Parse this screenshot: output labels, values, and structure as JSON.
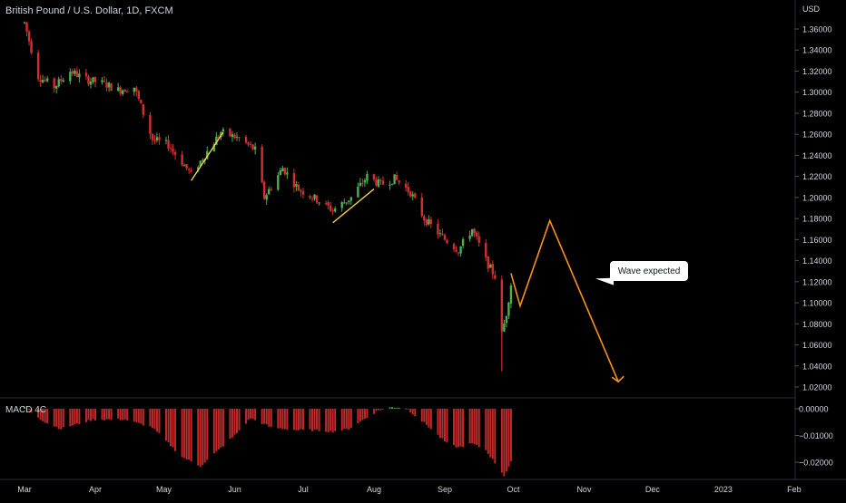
{
  "header": {
    "symbol_title": "British Pound / U.S. Dollar, 1D, FXCM"
  },
  "indicator": {
    "label": "MACD 4C"
  },
  "annotation": {
    "text": "Wave expected"
  },
  "colors": {
    "background": "#000000",
    "up": "#4caf50",
    "down": "#d32f2f",
    "wedge_line": "#f5d142",
    "projection": "#f7931a",
    "axis_text": "#d1d4dc"
  },
  "chart_data": [
    {
      "type": "candlestick",
      "y_axis_unit": "USD",
      "ylim": [
        1.0,
        1.38
      ],
      "y_ticks": [
        "1.36000",
        "1.34000",
        "1.32000",
        "1.30000",
        "1.28000",
        "1.26000",
        "1.24000",
        "1.22000",
        "1.20000",
        "1.18000",
        "1.16000",
        "1.14000",
        "1.12000",
        "1.10000",
        "1.08000",
        "1.06000",
        "1.04000",
        "1.02000"
      ],
      "x_ticks": [
        "Mar",
        "Apr",
        "May",
        "Jun",
        "Jul",
        "Aug",
        "Sep",
        "Oct",
        "Nov",
        "Dec",
        "2023",
        "Feb"
      ],
      "price_path_anchors": [
        [
          "2022-03-01",
          1.366
        ],
        [
          "2022-03-07",
          1.315
        ],
        [
          "2022-03-14",
          1.305
        ],
        [
          "2022-03-21",
          1.32
        ],
        [
          "2022-03-28",
          1.312
        ],
        [
          "2022-04-05",
          1.308
        ],
        [
          "2022-04-11",
          1.302
        ],
        [
          "2022-04-18",
          1.305
        ],
        [
          "2022-04-26",
          1.255
        ],
        [
          "2022-05-03",
          1.25
        ],
        [
          "2022-05-13",
          1.222
        ],
        [
          "2022-05-26",
          1.262
        ],
        [
          "2022-06-03",
          1.256
        ],
        [
          "2022-06-10",
          1.245
        ],
        [
          "2022-06-14",
          1.2
        ],
        [
          "2022-06-22",
          1.228
        ],
        [
          "2022-06-29",
          1.208
        ],
        [
          "2022-07-07",
          1.198
        ],
        [
          "2022-07-14",
          1.188
        ],
        [
          "2022-07-22",
          1.2
        ],
        [
          "2022-07-29",
          1.22
        ],
        [
          "2022-08-04",
          1.212
        ],
        [
          "2022-08-10",
          1.218
        ],
        [
          "2022-08-17",
          1.205
        ],
        [
          "2022-08-23",
          1.18
        ],
        [
          "2022-08-31",
          1.162
        ],
        [
          "2022-09-07",
          1.15
        ],
        [
          "2022-09-13",
          1.17
        ],
        [
          "2022-09-19",
          1.14
        ],
        [
          "2022-09-23",
          1.125
        ],
        [
          "2022-09-26",
          1.07
        ],
        [
          "2022-09-28",
          1.09
        ],
        [
          "2022-09-30",
          1.118
        ]
      ],
      "trend_lines": [
        {
          "from": [
            "2022-05-13",
            1.216
          ],
          "to": [
            "2022-05-27",
            1.262
          ]
        },
        {
          "from": [
            "2022-07-14",
            1.176
          ],
          "to": [
            "2022-08-01",
            1.208
          ]
        }
      ],
      "projection_path": [
        [
          "2022-09-30",
          1.128
        ],
        [
          "2022-10-04",
          1.097
        ],
        [
          "2022-10-17",
          1.178
        ],
        [
          "2022-11-16",
          1.025
        ]
      ]
    },
    {
      "type": "histogram",
      "name": "MACD 4C",
      "ylim": [
        -0.025,
        0.002
      ],
      "y_ticks": [
        "0.00000",
        "−0.01000",
        "−0.02000"
      ],
      "value_anchors": [
        [
          "2022-03-01",
          0.0006
        ],
        [
          "2022-03-10",
          -0.005
        ],
        [
          "2022-03-17",
          -0.0075
        ],
        [
          "2022-03-31",
          -0.004
        ],
        [
          "2022-04-14",
          -0.004
        ],
        [
          "2022-04-26",
          -0.007
        ],
        [
          "2022-05-09",
          -0.018
        ],
        [
          "2022-05-17",
          -0.0215
        ],
        [
          "2022-06-01",
          -0.01
        ],
        [
          "2022-06-08",
          -0.0035
        ],
        [
          "2022-06-17",
          -0.007
        ],
        [
          "2022-06-28",
          -0.008
        ],
        [
          "2022-07-05",
          -0.008
        ],
        [
          "2022-07-14",
          -0.0085
        ],
        [
          "2022-07-21",
          -0.0075
        ],
        [
          "2022-08-03",
          -0.0005
        ],
        [
          "2022-08-09",
          0.0006
        ],
        [
          "2022-08-15",
          0.0003
        ],
        [
          "2022-08-24",
          -0.006
        ],
        [
          "2022-09-02",
          -0.013
        ],
        [
          "2022-09-07",
          -0.0145
        ],
        [
          "2022-09-13",
          -0.013
        ],
        [
          "2022-09-19",
          -0.0155
        ],
        [
          "2022-09-27",
          -0.025
        ],
        [
          "2022-09-30",
          -0.02
        ]
      ]
    }
  ]
}
